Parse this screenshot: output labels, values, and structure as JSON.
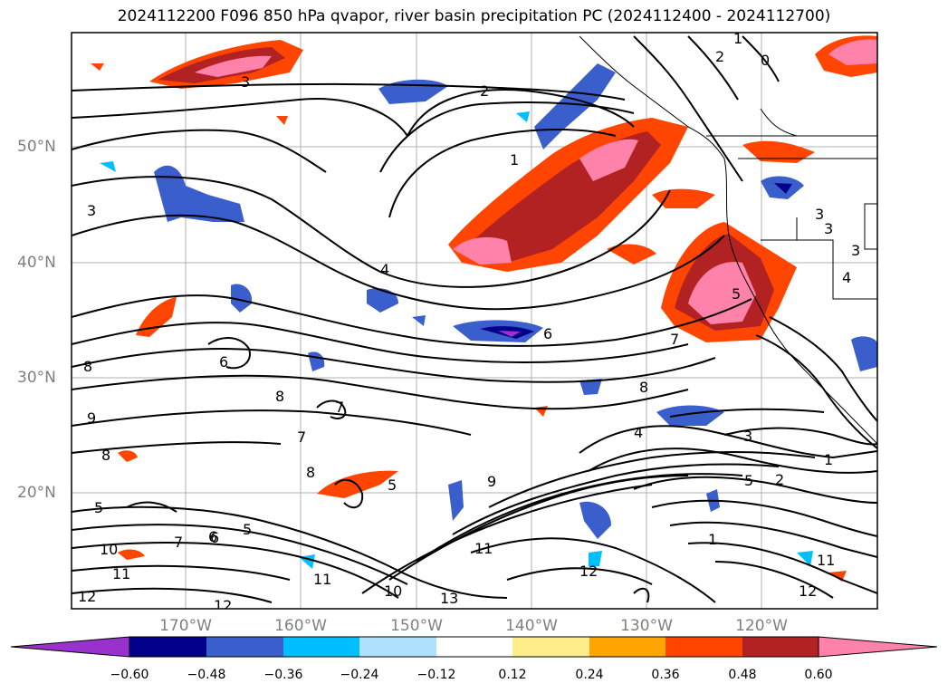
{
  "title": "2024112200 F096 850 hPa qvapor, river basin precipitation PC (2024112400 - 2024112700)",
  "lat_labels": [
    "50°N",
    "40°N",
    "30°N",
    "20°N"
  ],
  "lon_labels": [
    "170°W",
    "160°W",
    "150°W",
    "140°W",
    "130°W",
    "120°W"
  ],
  "colorbar": {
    "ticks": [
      "−0.60",
      "−0.48",
      "−0.36",
      "−0.24",
      "−0.12",
      "0.12",
      "0.24",
      "0.36",
      "0.48",
      "0.60"
    ],
    "colors": [
      "#9932cc",
      "#00008b",
      "#3a5fcd",
      "#00bfff",
      "#b0e2ff",
      "#ffffff",
      "#ffec8b",
      "#ffa500",
      "#ff4500",
      "#b22222",
      "#ff82ab"
    ]
  },
  "contour_labels": [
    "1",
    "0",
    "3",
    "2",
    "1",
    "3",
    "4",
    "6",
    "7",
    "8",
    "8",
    "9",
    "8",
    "7",
    "7",
    "6",
    "8",
    "9",
    "8",
    "4",
    "3",
    "1",
    "5",
    "2",
    "6",
    "5",
    "5",
    "7",
    "10",
    "11",
    "11",
    "12",
    "12",
    "13",
    "10",
    "11",
    "12",
    "11",
    "12",
    "5",
    "1",
    "6",
    "3",
    "3",
    "4",
    "3",
    "5",
    "2"
  ]
}
